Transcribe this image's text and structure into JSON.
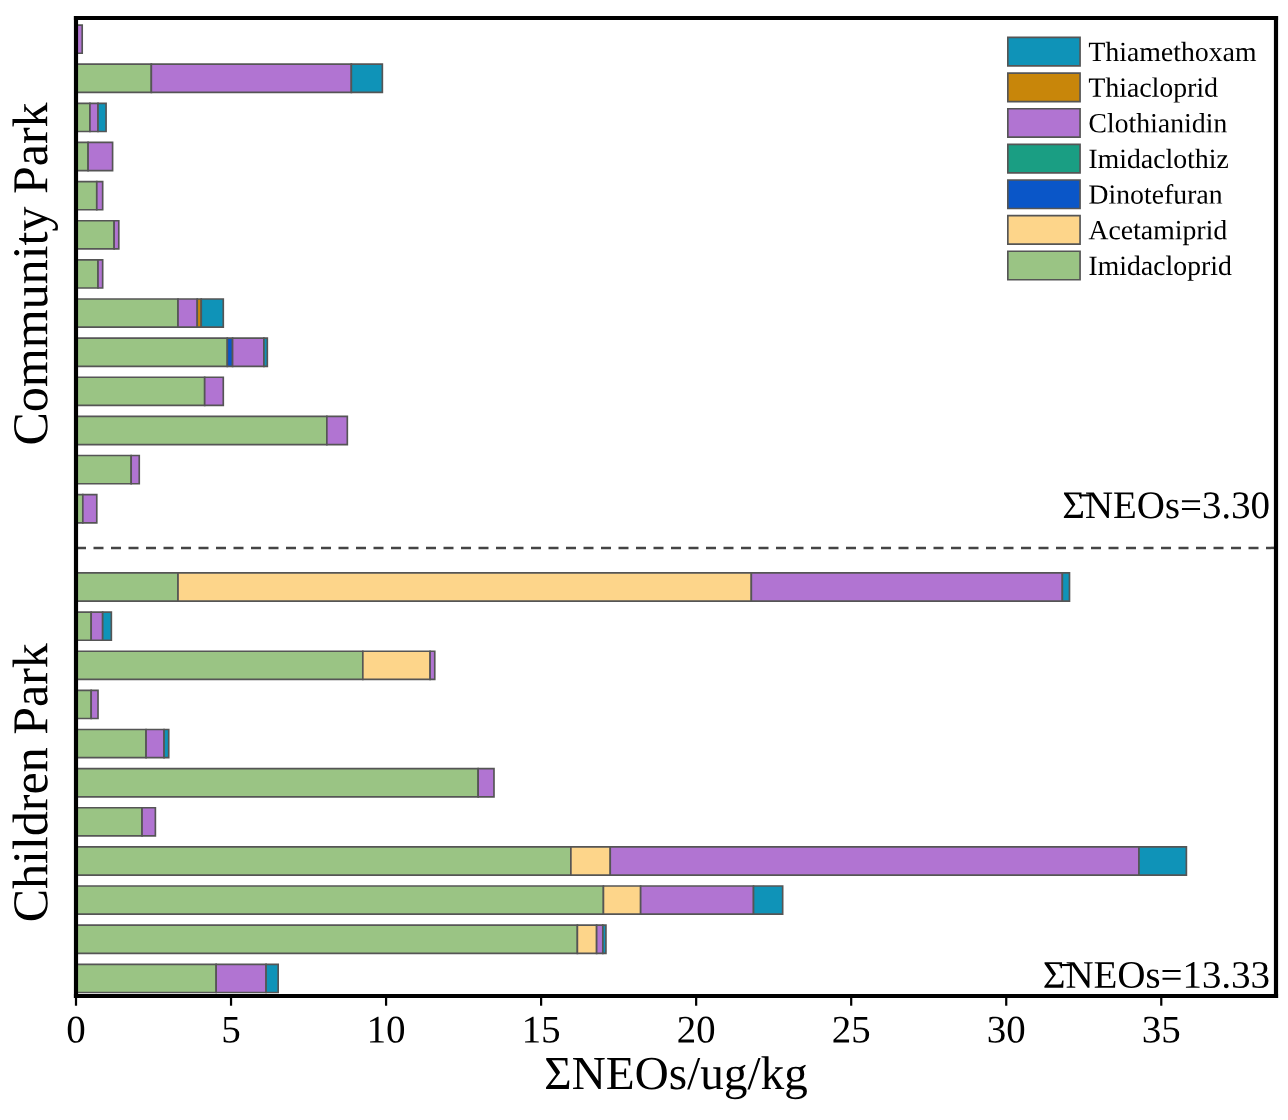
{
  "chart_data": {
    "type": "bar",
    "orientation": "horizontal",
    "stacked": true,
    "xlabel": "ΣNEOs/ug/kg",
    "categories": [
      null,
      null,
      null,
      null,
      null,
      null,
      null,
      null,
      null,
      null,
      null,
      null,
      null,
      null,
      null,
      null,
      null,
      null,
      null,
      null,
      null,
      null,
      null,
      null,
      null
    ],
    "xlim": [
      0,
      38.7
    ],
    "xticks": [
      0,
      5,
      10,
      15,
      20,
      25,
      30,
      35
    ],
    "tick_labels": "x",
    "legend": "top right",
    "annotations": [
      "Community Park",
      "Σ̄NEOs=3.30",
      "Children Park",
      "Σ̄NEOs=13.33"
    ],
    "ref_lines": [
      {
        "axis": "y",
        "line_style": "dashed",
        "color": "#444444"
      }
    ],
    "series": [
      {
        "name": "Imidacloprid",
        "color": "#9ac484",
        "values": [
          null,
          2.43,
          0.45,
          0.39,
          0.67,
          1.23,
          0.71,
          3.29,
          4.88,
          4.15,
          8.09,
          1.78,
          0.22,
          null,
          3.29,
          0.49,
          9.25,
          0.49,
          2.26,
          12.97,
          2.13,
          15.96,
          17.01,
          16.17,
          4.52
        ]
      },
      {
        "name": "Acetamiprid",
        "color": "#fdd58a",
        "values": [
          null,
          null,
          null,
          null,
          null,
          null,
          null,
          null,
          null,
          null,
          null,
          null,
          null,
          null,
          18.49,
          null,
          2.17,
          null,
          null,
          null,
          null,
          1.27,
          1.2,
          0.62,
          null
        ]
      },
      {
        "name": "Dinotefuran",
        "color": "#0a56c8",
        "values": [
          null,
          null,
          null,
          null,
          null,
          null,
          null,
          null,
          0.17,
          null,
          null,
          null,
          null,
          null,
          null,
          null,
          null,
          null,
          null,
          null,
          null,
          null,
          null,
          null,
          null
        ]
      },
      {
        "name": "Imidaclothiz",
        "color": "#1a9e83",
        "values": [
          null,
          null,
          null,
          null,
          null,
          null,
          null,
          null,
          null,
          null,
          null,
          null,
          null,
          null,
          null,
          null,
          null,
          null,
          null,
          null,
          null,
          null,
          null,
          null,
          null
        ]
      },
      {
        "name": "Clothianidin",
        "color": "#b174d2",
        "values": [
          0.2,
          6.45,
          0.26,
          0.79,
          0.19,
          0.15,
          0.15,
          0.62,
          1.01,
          0.6,
          0.66,
          0.26,
          0.45,
          null,
          10.03,
          0.37,
          0.15,
          0.22,
          0.58,
          0.51,
          0.43,
          17.05,
          3.64,
          0.2,
          1.61
        ]
      },
      {
        "name": "Thiacloprid",
        "color": "#c8860a",
        "values": [
          null,
          null,
          null,
          null,
          null,
          null,
          null,
          0.13,
          null,
          null,
          null,
          null,
          null,
          null,
          null,
          null,
          null,
          null,
          null,
          null,
          null,
          null,
          null,
          null,
          null
        ]
      },
      {
        "name": "Thiamethoxam",
        "color": "#0f93b8",
        "values": [
          null,
          1.0,
          0.26,
          null,
          null,
          null,
          null,
          0.71,
          0.11,
          null,
          null,
          null,
          null,
          null,
          0.23,
          0.28,
          null,
          null,
          0.15,
          null,
          null,
          1.53,
          0.94,
          0.1,
          0.39
        ]
      }
    ]
  }
}
